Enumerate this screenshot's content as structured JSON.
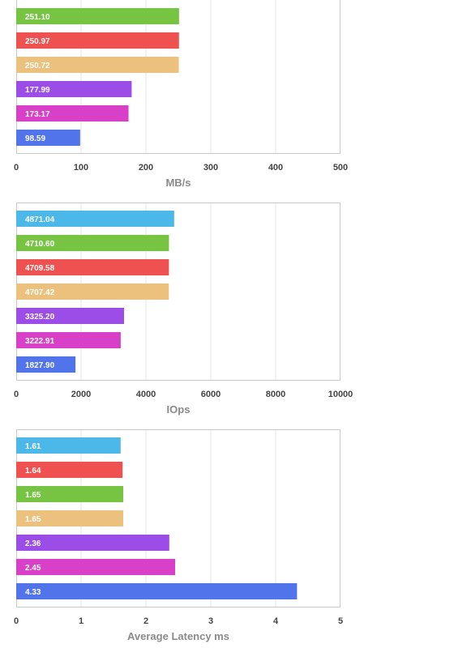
{
  "colors": {
    "cyan": "#4cb8ea",
    "green": "#76c442",
    "red": "#ef5050",
    "tan": "#ecc17e",
    "purple": "#9c4de8",
    "magenta": "#d940c8",
    "blue": "#5274ea",
    "grid": "#e6e6e6",
    "frame": "#c8c8c8"
  },
  "chart_data": [
    {
      "type": "bar",
      "orientation": "horizontal",
      "xlabel": "MB/s",
      "xlim": [
        0,
        500
      ],
      "ticks": [
        "0",
        "100",
        "200",
        "300",
        "400",
        "500"
      ],
      "grid": true,
      "bars": [
        {
          "value": 251.1,
          "label": "251.10",
          "color": "green"
        },
        {
          "value": 250.97,
          "label": "250.97",
          "color": "red"
        },
        {
          "value": 250.72,
          "label": "250.72",
          "color": "tan"
        },
        {
          "value": 177.99,
          "label": "177.99",
          "color": "purple"
        },
        {
          "value": 173.17,
          "label": "173.17",
          "color": "magenta"
        },
        {
          "value": 98.59,
          "label": "98.59",
          "color": "blue"
        }
      ]
    },
    {
      "type": "bar",
      "orientation": "horizontal",
      "xlabel": "IOps",
      "xlim": [
        0,
        10000
      ],
      "ticks": [
        "0",
        "2000",
        "4000",
        "6000",
        "8000",
        "10000"
      ],
      "grid": true,
      "bars": [
        {
          "value": 4871.04,
          "label": "4871.04",
          "color": "cyan"
        },
        {
          "value": 4710.6,
          "label": "4710.60",
          "color": "green"
        },
        {
          "value": 4709.58,
          "label": "4709.58",
          "color": "red"
        },
        {
          "value": 4707.42,
          "label": "4707.42",
          "color": "tan"
        },
        {
          "value": 3325.2,
          "label": "3325.20",
          "color": "purple"
        },
        {
          "value": 3222.91,
          "label": "3222.91",
          "color": "magenta"
        },
        {
          "value": 1827.9,
          "label": "1827.90",
          "color": "blue"
        }
      ]
    },
    {
      "type": "bar",
      "orientation": "horizontal",
      "xlabel": "Average Latency ms",
      "xlim": [
        0,
        5
      ],
      "ticks": [
        "0",
        "1",
        "2",
        "3",
        "4",
        "5"
      ],
      "grid": true,
      "bars": [
        {
          "value": 1.61,
          "label": "1.61",
          "color": "cyan"
        },
        {
          "value": 1.64,
          "label": "1.64",
          "color": "red"
        },
        {
          "value": 1.65,
          "label": "1.65",
          "color": "green"
        },
        {
          "value": 1.65,
          "label": "1.65",
          "color": "tan"
        },
        {
          "value": 2.36,
          "label": "2.36",
          "color": "purple"
        },
        {
          "value": 2.45,
          "label": "2.45",
          "color": "magenta"
        },
        {
          "value": 4.33,
          "label": "4.33",
          "color": "blue"
        }
      ]
    }
  ]
}
